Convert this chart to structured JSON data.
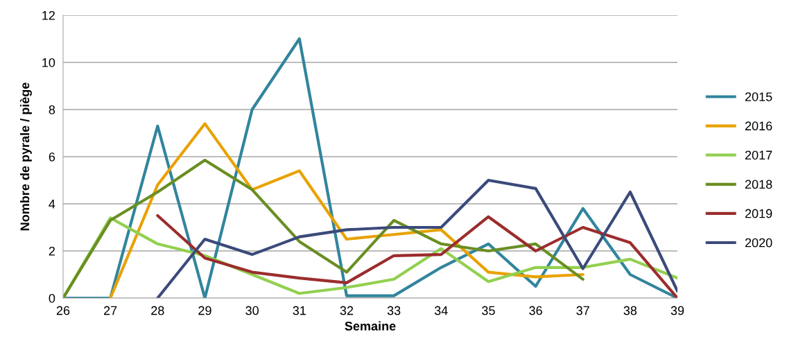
{
  "chart_data": {
    "type": "line",
    "xlabel": "Semaine",
    "ylabel": "Nombre de pyrale / piège",
    "x": [
      26,
      27,
      28,
      29,
      30,
      31,
      32,
      33,
      34,
      35,
      36,
      37,
      38,
      39
    ],
    "series": [
      {
        "name": "2015",
        "color": "#31859c",
        "values": [
          0,
          0,
          7.3,
          0,
          8.0,
          11.0,
          0.1,
          0.1,
          1.3,
          2.3,
          0.5,
          3.8,
          1.0,
          0
        ]
      },
      {
        "name": "2016",
        "color": "#e8a202",
        "values": [
          null,
          0,
          4.8,
          7.4,
          4.6,
          5.4,
          2.5,
          2.7,
          2.9,
          1.1,
          0.9,
          1.0,
          null,
          null
        ]
      },
      {
        "name": "2017",
        "color": "#92d050",
        "values": [
          0,
          3.4,
          2.3,
          1.8,
          1.0,
          0.2,
          0.45,
          0.8,
          2.1,
          0.7,
          1.3,
          1.3,
          1.65,
          0.85
        ]
      },
      {
        "name": "2018",
        "color": "#6a8e23",
        "values": [
          0,
          3.3,
          4.5,
          5.85,
          4.6,
          2.4,
          1.1,
          3.3,
          2.3,
          2.0,
          2.3,
          0.8,
          null,
          null
        ]
      },
      {
        "name": "2019",
        "color": "#9b2d2d",
        "values": [
          null,
          null,
          3.5,
          1.7,
          1.1,
          0.85,
          0.65,
          1.8,
          1.85,
          3.45,
          2.0,
          3.0,
          2.35,
          0
        ]
      },
      {
        "name": "2020",
        "color": "#3b4a7a",
        "values": [
          null,
          null,
          0,
          2.5,
          1.85,
          2.6,
          2.9,
          3.0,
          3.0,
          5.0,
          4.65,
          1.25,
          4.5,
          0.3
        ]
      }
    ],
    "xlim": [
      26,
      39
    ],
    "xticks": [
      26,
      27,
      28,
      29,
      30,
      31,
      32,
      33,
      34,
      35,
      36,
      37,
      38,
      39
    ],
    "ylim": [
      0,
      12
    ],
    "yticks": [
      0,
      2,
      4,
      6,
      8,
      10,
      12
    ],
    "grid": "y",
    "legend": "right",
    "marker": "none",
    "line_style": "solid"
  }
}
